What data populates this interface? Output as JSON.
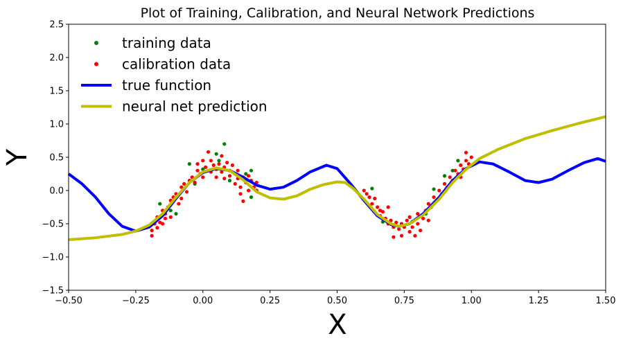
{
  "chart_data": {
    "type": "scatter",
    "title": "Plot of Training, Calibration, and Neural Network Predictions",
    "xlabel": "X",
    "ylabel": "Y",
    "xlim": [
      -0.5,
      1.5
    ],
    "ylim": [
      -1.5,
      2.5
    ],
    "x_ticks": [
      "−0.50",
      "−0.25",
      "0.00",
      "0.25",
      "0.50",
      "0.75",
      "1.00",
      "1.25",
      "1.50"
    ],
    "x_tick_values": [
      -0.5,
      -0.25,
      0.0,
      0.25,
      0.5,
      0.75,
      1.0,
      1.25,
      1.5
    ],
    "y_ticks": [
      "−1.5",
      "−1.0",
      "−0.5",
      "0.0",
      "0.5",
      "1.0",
      "1.5",
      "2.0",
      "2.5"
    ],
    "y_tick_values": [
      -1.5,
      -1.0,
      -0.5,
      0.0,
      0.5,
      1.0,
      1.5,
      2.0,
      2.5
    ],
    "grid": false,
    "legend_position": "top-left",
    "series": [
      {
        "name": "training data",
        "kind": "scatter",
        "color": "#008000",
        "points": [
          [
            -0.17,
            -0.44
          ],
          [
            -0.16,
            -0.2
          ],
          [
            -0.12,
            -0.3
          ],
          [
            -0.1,
            -0.35
          ],
          [
            -0.05,
            0.4
          ],
          [
            -0.03,
            0.1
          ],
          [
            0.0,
            0.32
          ],
          [
            0.05,
            0.55
          ],
          [
            0.06,
            0.45
          ],
          [
            0.08,
            0.7
          ],
          [
            0.1,
            0.15
          ],
          [
            0.16,
            0.25
          ],
          [
            0.18,
            -0.1
          ],
          [
            0.18,
            0.3
          ],
          [
            0.63,
            0.03
          ],
          [
            0.67,
            -0.47
          ],
          [
            0.78,
            -0.47
          ],
          [
            0.83,
            -0.35
          ],
          [
            0.86,
            0.02
          ],
          [
            0.9,
            0.22
          ],
          [
            0.93,
            0.3
          ],
          [
            0.95,
            0.45
          ]
        ]
      },
      {
        "name": "calibration data",
        "kind": "scatter",
        "color": "#ff0000",
        "points": [
          [
            -0.19,
            -0.6
          ],
          [
            -0.19,
            -0.68
          ],
          [
            -0.18,
            -0.5
          ],
          [
            -0.17,
            -0.56
          ],
          [
            -0.17,
            -0.4
          ],
          [
            -0.16,
            -0.48
          ],
          [
            -0.15,
            -0.5
          ],
          [
            -0.15,
            -0.3
          ],
          [
            -0.14,
            -0.35
          ],
          [
            -0.14,
            -0.42
          ],
          [
            -0.13,
            -0.25
          ],
          [
            -0.12,
            -0.15
          ],
          [
            -0.12,
            -0.4
          ],
          [
            -0.11,
            -0.1
          ],
          [
            -0.1,
            -0.05
          ],
          [
            -0.09,
            -0.2
          ],
          [
            -0.08,
            0.05
          ],
          [
            -0.08,
            -0.12
          ],
          [
            -0.07,
            0.1
          ],
          [
            -0.06,
            -0.02
          ],
          [
            -0.05,
            0.15
          ],
          [
            -0.04,
            0.2
          ],
          [
            -0.03,
            0.12
          ],
          [
            -0.02,
            0.3
          ],
          [
            -0.01,
            0.25
          ],
          [
            0.0,
            0.2
          ],
          [
            0.01,
            0.35
          ],
          [
            0.02,
            0.3
          ],
          [
            0.03,
            0.45
          ],
          [
            0.03,
            0.28
          ],
          [
            0.04,
            0.38
          ],
          [
            0.05,
            0.32
          ],
          [
            0.05,
            0.2
          ],
          [
            0.06,
            0.4
          ],
          [
            0.07,
            0.28
          ],
          [
            0.07,
            0.52
          ],
          [
            0.08,
            0.35
          ],
          [
            0.08,
            0.18
          ],
          [
            0.09,
            0.42
          ],
          [
            0.1,
            0.3
          ],
          [
            0.1,
            0.22
          ],
          [
            0.11,
            0.38
          ],
          [
            0.12,
            0.25
          ],
          [
            0.12,
            0.1
          ],
          [
            0.13,
            0.3
          ],
          [
            0.13,
            0.18
          ],
          [
            0.14,
            0.05
          ],
          [
            0.14,
            -0.05
          ],
          [
            0.15,
            0.2
          ],
          [
            0.15,
            -0.16
          ],
          [
            0.16,
            0.12
          ],
          [
            0.17,
            0.22
          ],
          [
            0.17,
            0.0
          ],
          [
            0.18,
            0.15
          ],
          [
            0.19,
            0.05
          ],
          [
            0.2,
            0.12
          ],
          [
            0.2,
            0.0
          ],
          [
            0.0,
            0.45
          ],
          [
            0.02,
            0.58
          ],
          [
            -0.02,
            0.4
          ],
          [
            0.6,
            0.0
          ],
          [
            0.61,
            -0.05
          ],
          [
            0.62,
            -0.1
          ],
          [
            0.63,
            -0.2
          ],
          [
            0.64,
            -0.12
          ],
          [
            0.65,
            -0.25
          ],
          [
            0.66,
            -0.3
          ],
          [
            0.66,
            -0.38
          ],
          [
            0.67,
            -0.32
          ],
          [
            0.68,
            -0.42
          ],
          [
            0.69,
            -0.5
          ],
          [
            0.69,
            -0.25
          ],
          [
            0.7,
            -0.45
          ],
          [
            0.71,
            -0.55
          ],
          [
            0.71,
            -0.7
          ],
          [
            0.72,
            -0.48
          ],
          [
            0.73,
            -0.58
          ],
          [
            0.74,
            -0.5
          ],
          [
            0.74,
            -0.68
          ],
          [
            0.75,
            -0.55
          ],
          [
            0.76,
            -0.45
          ],
          [
            0.77,
            -0.62
          ],
          [
            0.77,
            -0.4
          ],
          [
            0.78,
            -0.55
          ],
          [
            0.79,
            -0.68
          ],
          [
            0.8,
            -0.5
          ],
          [
            0.8,
            -0.35
          ],
          [
            0.81,
            -0.6
          ],
          [
            0.82,
            -0.42
          ],
          [
            0.83,
            -0.3
          ],
          [
            0.84,
            -0.45
          ],
          [
            0.84,
            -0.2
          ],
          [
            0.85,
            -0.25
          ],
          [
            0.86,
            -0.1
          ],
          [
            0.87,
            -0.15
          ],
          [
            0.88,
            0.0
          ],
          [
            0.89,
            -0.05
          ],
          [
            0.9,
            0.1
          ],
          [
            0.91,
            0.05
          ],
          [
            0.92,
            0.2
          ],
          [
            0.93,
            0.15
          ],
          [
            0.94,
            0.3
          ],
          [
            0.95,
            0.25
          ],
          [
            0.96,
            0.38
          ],
          [
            0.97,
            0.32
          ],
          [
            0.98,
            0.45
          ],
          [
            0.99,
            0.4
          ],
          [
            1.0,
            0.5
          ],
          [
            0.98,
            0.57
          ],
          [
            0.96,
            0.2
          ]
        ]
      },
      {
        "name": "true function",
        "kind": "line",
        "color": "#0000ff",
        "points": [
          [
            -0.5,
            0.25
          ],
          [
            -0.45,
            0.1
          ],
          [
            -0.4,
            -0.1
          ],
          [
            -0.35,
            -0.35
          ],
          [
            -0.3,
            -0.54
          ],
          [
            -0.25,
            -0.61
          ],
          [
            -0.2,
            -0.55
          ],
          [
            -0.15,
            -0.38
          ],
          [
            -0.1,
            -0.12
          ],
          [
            -0.05,
            0.12
          ],
          [
            0.0,
            0.27
          ],
          [
            0.05,
            0.33
          ],
          [
            0.1,
            0.3
          ],
          [
            0.15,
            0.2
          ],
          [
            0.2,
            0.08
          ],
          [
            0.25,
            0.02
          ],
          [
            0.3,
            0.05
          ],
          [
            0.35,
            0.15
          ],
          [
            0.4,
            0.28
          ],
          [
            0.46,
            0.38
          ],
          [
            0.5,
            0.33
          ],
          [
            0.55,
            0.1
          ],
          [
            0.6,
            -0.15
          ],
          [
            0.65,
            -0.38
          ],
          [
            0.7,
            -0.51
          ],
          [
            0.73,
            -0.54
          ],
          [
            0.77,
            -0.5
          ],
          [
            0.82,
            -0.35
          ],
          [
            0.88,
            -0.1
          ],
          [
            0.93,
            0.15
          ],
          [
            0.98,
            0.33
          ],
          [
            1.03,
            0.43
          ],
          [
            1.08,
            0.4
          ],
          [
            1.14,
            0.28
          ],
          [
            1.2,
            0.15
          ],
          [
            1.25,
            0.12
          ],
          [
            1.3,
            0.17
          ],
          [
            1.36,
            0.3
          ],
          [
            1.42,
            0.42
          ],
          [
            1.47,
            0.48
          ],
          [
            1.5,
            0.44
          ]
        ]
      },
      {
        "name": "neural net prediction",
        "kind": "line",
        "color": "#bfbf00",
        "points": [
          [
            -0.5,
            -0.74
          ],
          [
            -0.4,
            -0.71
          ],
          [
            -0.3,
            -0.66
          ],
          [
            -0.25,
            -0.61
          ],
          [
            -0.2,
            -0.52
          ],
          [
            -0.15,
            -0.35
          ],
          [
            -0.1,
            -0.1
          ],
          [
            -0.05,
            0.12
          ],
          [
            0.0,
            0.28
          ],
          [
            0.05,
            0.34
          ],
          [
            0.1,
            0.3
          ],
          [
            0.15,
            0.16
          ],
          [
            0.2,
            -0.02
          ],
          [
            0.25,
            -0.11
          ],
          [
            0.3,
            -0.13
          ],
          [
            0.35,
            -0.08
          ],
          [
            0.4,
            0.02
          ],
          [
            0.45,
            0.09
          ],
          [
            0.5,
            0.13
          ],
          [
            0.53,
            0.12
          ],
          [
            0.56,
            0.03
          ],
          [
            0.6,
            -0.13
          ],
          [
            0.65,
            -0.36
          ],
          [
            0.7,
            -0.5
          ],
          [
            0.73,
            -0.54
          ],
          [
            0.77,
            -0.5
          ],
          [
            0.82,
            -0.37
          ],
          [
            0.88,
            -0.13
          ],
          [
            0.93,
            0.12
          ],
          [
            0.98,
            0.32
          ],
          [
            1.03,
            0.48
          ],
          [
            1.1,
            0.62
          ],
          [
            1.2,
            0.78
          ],
          [
            1.3,
            0.9
          ],
          [
            1.4,
            1.01
          ],
          [
            1.5,
            1.11
          ]
        ]
      }
    ]
  }
}
